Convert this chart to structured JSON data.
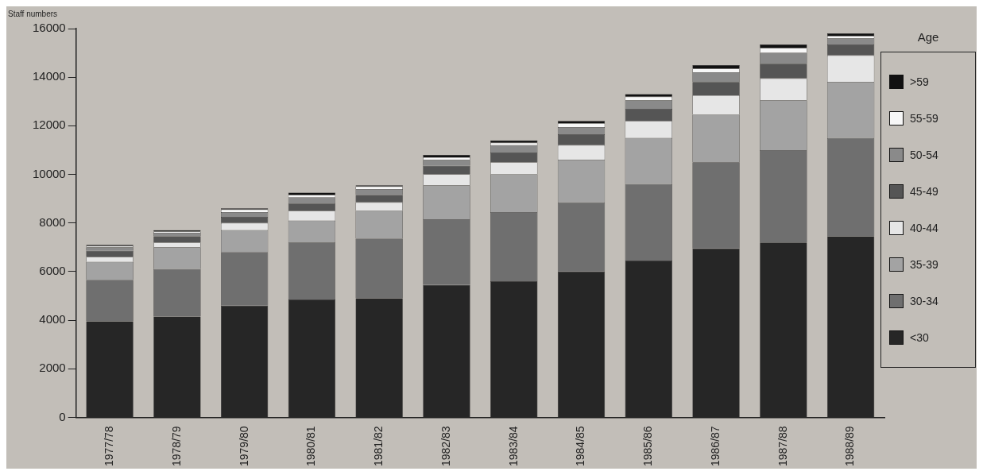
{
  "chart_data": {
    "type": "bar",
    "stacked": true,
    "ylabel": "Staff numbers",
    "legend_title": "Age",
    "legend": "right",
    "grid": false,
    "categories": [
      "1977/78",
      "1978/79",
      "1979/80",
      "1980/81",
      "1981/82",
      "1982/83",
      "1983/84",
      "1984/85",
      "1985/86",
      "1986/87",
      "1987/88",
      "1988/89"
    ],
    "ylim": [
      0,
      16000
    ],
    "yticks": [
      0,
      2000,
      4000,
      6000,
      8000,
      10000,
      12000,
      14000,
      16000
    ],
    "series": [
      {
        "name": "<30",
        "color": "#262626",
        "values": [
          3950,
          4150,
          4600,
          4850,
          4900,
          5450,
          5600,
          6000,
          6450,
          6950,
          7200,
          7450
        ]
      },
      {
        "name": "30-34",
        "color": "#6f6f6f",
        "values": [
          1700,
          1950,
          2200,
          2350,
          2450,
          2700,
          2850,
          2850,
          3150,
          3550,
          3800,
          4050
        ]
      },
      {
        "name": "35-39",
        "color": "#a3a3a3",
        "values": [
          750,
          900,
          900,
          900,
          1150,
          1400,
          1550,
          1750,
          1900,
          1950,
          2050,
          2300
        ]
      },
      {
        "name": "40-44",
        "color": "#e6e6e6",
        "values": [
          200,
          200,
          300,
          400,
          350,
          450,
          500,
          600,
          700,
          800,
          900,
          1100
        ]
      },
      {
        "name": "45-49",
        "color": "#555555",
        "values": [
          250,
          250,
          250,
          300,
          300,
          350,
          400,
          450,
          500,
          550,
          600,
          450
        ]
      },
      {
        "name": "50-54",
        "color": "#8a8a8a",
        "values": [
          150,
          150,
          200,
          250,
          250,
          250,
          300,
          300,
          350,
          400,
          450,
          250
        ]
      },
      {
        "name": "55-59",
        "color": "#f7f7f7",
        "values": [
          50,
          50,
          100,
          100,
          100,
          100,
          100,
          150,
          150,
          150,
          200,
          100
        ]
      },
      {
        "name": ">59",
        "color": "#111111",
        "values": [
          50,
          50,
          50,
          100,
          50,
          100,
          100,
          100,
          100,
          150,
          150,
          100
        ]
      }
    ]
  }
}
